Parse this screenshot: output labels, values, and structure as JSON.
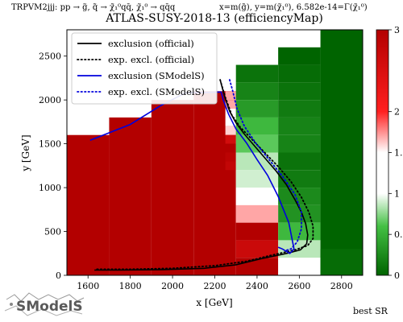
{
  "chart_data": {
    "type": "heatmap",
    "title": "ATLAS-SUSY-2018-13 (efficiencyMap)",
    "subtitle_left": "TRPVM2jjj: pp → g̃, q̃ → χ̃₁⁰qq̄, χ̃₁⁰ → qq̄q",
    "subtitle_right": "x=m(g̃), y=m(χ̃₁⁰), 6.582e-14=Γ(χ̃₁⁰)",
    "xlabel": "x [GeV]",
    "ylabel": "y [GeV]",
    "xlim": [
      1500,
      2900
    ],
    "ylim": [
      0,
      2800
    ],
    "xticks": [
      1600,
      1800,
      2000,
      2200,
      2400,
      2600,
      2800
    ],
    "yticks": [
      0,
      500,
      1000,
      1500,
      2000,
      2500
    ],
    "colorbar": {
      "range": [
        0,
        3
      ],
      "ticks": [
        "3",
        "2",
        "1.5",
        "1",
        "0.5",
        "0"
      ],
      "scale": "r-value"
    },
    "footer_label": "best SR",
    "logo_text": "SModelS",
    "legend": {
      "placement": "top-left",
      "entries": [
        {
          "label": "exclusion (official)",
          "color": "#000000",
          "style": "solid"
        },
        {
          "label": "exp. excl. (official)",
          "color": "#000000",
          "style": "dotted"
        },
        {
          "label": "exclusion (SModelS)",
          "color": "#0000dd",
          "style": "solid"
        },
        {
          "label": "exp. excl. (SModelS)",
          "color": "#0000dd",
          "style": "dotted"
        }
      ]
    },
    "cells": [
      {
        "x0": 1500,
        "x1": 1700,
        "y0": 0,
        "y1": 1600,
        "value": 3.0
      },
      {
        "x0": 1700,
        "x1": 1900,
        "y0": 0,
        "y1": 1800,
        "value": 3.0
      },
      {
        "x0": 1900,
        "x1": 2100,
        "y0": 0,
        "y1": 2000,
        "value": 3.0
      },
      {
        "x0": 2100,
        "x1": 2300,
        "y0": 0,
        "y1": 2100,
        "value": 3.0
      },
      {
        "x0": 2250,
        "x1": 2300,
        "y0": 2000,
        "y1": 2100,
        "value": 1.7
      },
      {
        "x0": 2250,
        "x1": 2300,
        "y0": 1900,
        "y1": 2000,
        "value": 1.7
      },
      {
        "x0": 2250,
        "x1": 2300,
        "y0": 1800,
        "y1": 1900,
        "value": 1.5
      },
      {
        "x0": 2250,
        "x1": 2300,
        "y0": 1700,
        "y1": 1800,
        "value": 1.45
      },
      {
        "x0": 2250,
        "x1": 2300,
        "y0": 1600,
        "y1": 1700,
        "value": 1.6
      },
      {
        "x0": 2250,
        "x1": 2300,
        "y0": 1500,
        "y1": 1600,
        "value": 2.6
      },
      {
        "x0": 2250,
        "x1": 2300,
        "y0": 1400,
        "y1": 1500,
        "value": 3.0
      },
      {
        "x0": 2250,
        "x1": 2300,
        "y0": 1300,
        "y1": 1400,
        "value": 2.9
      },
      {
        "x0": 2250,
        "x1": 2300,
        "y0": 1200,
        "y1": 1300,
        "value": 2.8
      },
      {
        "x0": 2300,
        "x1": 2500,
        "y0": 2400,
        "y1": 2400,
        "value": 0.0
      },
      {
        "x0": 2300,
        "x1": 2500,
        "y0": 2200,
        "y1": 2400,
        "value": 0.1
      },
      {
        "x0": 2300,
        "x1": 2500,
        "y0": 2000,
        "y1": 2200,
        "value": 0.2
      },
      {
        "x0": 2300,
        "x1": 2500,
        "y0": 1800,
        "y1": 2000,
        "value": 0.35
      },
      {
        "x0": 2300,
        "x1": 2500,
        "y0": 1600,
        "y1": 1800,
        "value": 0.55
      },
      {
        "x0": 2300,
        "x1": 2500,
        "y0": 1400,
        "y1": 1600,
        "value": 0.65
      },
      {
        "x0": 2300,
        "x1": 2500,
        "y0": 1200,
        "y1": 1400,
        "value": 0.85
      },
      {
        "x0": 2300,
        "x1": 2500,
        "y0": 1000,
        "y1": 1200,
        "value": 0.9
      },
      {
        "x0": 2300,
        "x1": 2500,
        "y0": 800,
        "y1": 1000,
        "value": 1.3
      },
      {
        "x0": 2300,
        "x1": 2500,
        "y0": 600,
        "y1": 800,
        "value": 1.7
      },
      {
        "x0": 2300,
        "x1": 2500,
        "y0": 400,
        "y1": 600,
        "value": 3.0
      },
      {
        "x0": 2300,
        "x1": 2500,
        "y0": 200,
        "y1": 400,
        "value": 2.7
      },
      {
        "x0": 2300,
        "x1": 2500,
        "y0": 0,
        "y1": 200,
        "value": 3.0
      },
      {
        "x0": 2500,
        "x1": 2700,
        "y0": 2400,
        "y1": 2600,
        "value": 0.0
      },
      {
        "x0": 2500,
        "x1": 2700,
        "y0": 2200,
        "y1": 2400,
        "value": 0.05
      },
      {
        "x0": 2500,
        "x1": 2700,
        "y0": 2000,
        "y1": 2200,
        "value": 0.1
      },
      {
        "x0": 2500,
        "x1": 2700,
        "y0": 1800,
        "y1": 2000,
        "value": 0.15
      },
      {
        "x0": 2500,
        "x1": 2700,
        "y0": 1600,
        "y1": 1800,
        "value": 0.2
      },
      {
        "x0": 2500,
        "x1": 2700,
        "y0": 1400,
        "y1": 1600,
        "value": 0.2
      },
      {
        "x0": 2500,
        "x1": 2700,
        "y0": 1200,
        "y1": 1400,
        "value": 0.1
      },
      {
        "x0": 2500,
        "x1": 2700,
        "y0": 1000,
        "y1": 1200,
        "value": 0.15
      },
      {
        "x0": 2500,
        "x1": 2700,
        "y0": 800,
        "y1": 1000,
        "value": 0.25
      },
      {
        "x0": 2500,
        "x1": 2700,
        "y0": 600,
        "y1": 800,
        "value": 0.3
      },
      {
        "x0": 2500,
        "x1": 2700,
        "y0": 400,
        "y1": 600,
        "value": 0.55
      },
      {
        "x0": 2500,
        "x1": 2700,
        "y0": 200,
        "y1": 400,
        "value": 0.85
      },
      {
        "x0": 2500,
        "x1": 2700,
        "y0": 0,
        "y1": 200,
        "value": 1.0
      },
      {
        "x0": 2700,
        "x1": 2900,
        "y0": 0,
        "y1": 2800,
        "value": 0.0
      },
      {
        "x0": 2700,
        "x1": 2900,
        "y0": 0,
        "y1": 300,
        "value": 0.05
      }
    ],
    "lines": [
      {
        "name": "exclusion (official)",
        "color": "#000000",
        "style": "solid",
        "points": [
          [
            2225,
            2230
          ],
          [
            2245,
            2050
          ],
          [
            2270,
            1870
          ],
          [
            2300,
            1740
          ],
          [
            2340,
            1610
          ],
          [
            2390,
            1470
          ],
          [
            2440,
            1330
          ],
          [
            2490,
            1190
          ],
          [
            2540,
            1030
          ],
          [
            2580,
            860
          ],
          [
            2610,
            720
          ],
          [
            2630,
            590
          ],
          [
            2640,
            460
          ],
          [
            2635,
            360
          ],
          [
            2605,
            290
          ],
          [
            2540,
            250
          ],
          [
            2420,
            190
          ],
          [
            2300,
            120
          ],
          [
            2150,
            80
          ],
          [
            1950,
            65
          ],
          [
            1750,
            60
          ],
          [
            1630,
            60
          ]
        ]
      },
      {
        "name": "exp. excl. (official)",
        "color": "#000000",
        "style": "dotted",
        "points": [
          [
            2225,
            2230
          ],
          [
            2250,
            2030
          ],
          [
            2280,
            1830
          ],
          [
            2320,
            1690
          ],
          [
            2380,
            1540
          ],
          [
            2440,
            1390
          ],
          [
            2500,
            1240
          ],
          [
            2560,
            1070
          ],
          [
            2610,
            890
          ],
          [
            2645,
            720
          ],
          [
            2665,
            560
          ],
          [
            2665,
            420
          ],
          [
            2640,
            340
          ],
          [
            2580,
            290
          ],
          [
            2470,
            230
          ],
          [
            2350,
            160
          ],
          [
            2200,
            110
          ],
          [
            2000,
            80
          ],
          [
            1800,
            70
          ],
          [
            1640,
            70
          ]
        ]
      },
      {
        "name": "exclusion (SModelS)",
        "color": "#0000dd",
        "style": "solid",
        "points": [
          [
            1610,
            1540
          ],
          [
            1800,
            1720
          ],
          [
            1940,
            1930
          ],
          [
            2060,
            2080
          ],
          [
            2230,
            2090
          ],
          [
            2240,
            2000
          ],
          [
            2265,
            1840
          ],
          [
            2300,
            1670
          ],
          [
            2350,
            1510
          ],
          [
            2400,
            1320
          ],
          [
            2450,
            1140
          ],
          [
            2500,
            900
          ],
          [
            2550,
            600
          ],
          [
            2575,
            300
          ],
          [
            2555,
            250
          ],
          [
            2520,
            300
          ],
          [
            2500,
            320
          ]
        ]
      },
      {
        "name": "exp. excl. (SModelS)",
        "color": "#0000dd",
        "style": "dotted",
        "points": [
          [
            2270,
            2230
          ],
          [
            2285,
            2100
          ],
          [
            2305,
            1900
          ],
          [
            2340,
            1700
          ],
          [
            2390,
            1520
          ],
          [
            2450,
            1340
          ],
          [
            2520,
            1130
          ],
          [
            2580,
            920
          ],
          [
            2610,
            720
          ],
          [
            2610,
            530
          ],
          [
            2590,
            380
          ],
          [
            2560,
            300
          ],
          [
            2530,
            280
          ]
        ]
      }
    ]
  }
}
